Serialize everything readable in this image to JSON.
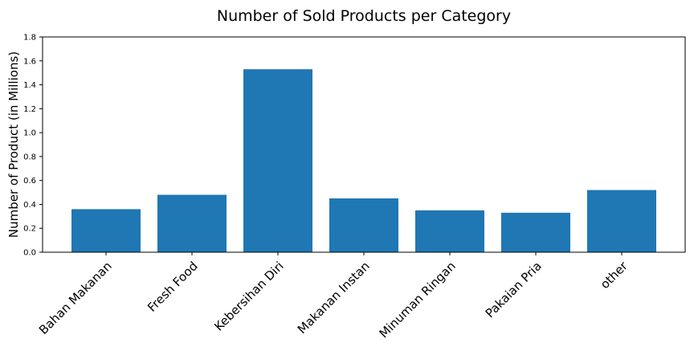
{
  "chart_data": {
    "type": "bar",
    "title": "Number of Sold Products per Category",
    "xlabel": "",
    "ylabel": "Number of Product (in Millions)",
    "categories": [
      "Bahan Makanan",
      "Fresh Food",
      "Kebersihan Diri",
      "Makanan Instan",
      "Minuman Ringan",
      "Pakaian Pria",
      "other"
    ],
    "values": [
      0.36,
      0.48,
      1.53,
      0.45,
      0.35,
      0.33,
      0.52
    ],
    "ylim": [
      0,
      1.8
    ],
    "yticks": [
      "0.0",
      "0.2",
      "0.4",
      "0.6",
      "0.8",
      "1.0",
      "1.2",
      "1.4",
      "1.6",
      "1.8"
    ],
    "bar_color": "#1f77b4",
    "grid": false
  }
}
